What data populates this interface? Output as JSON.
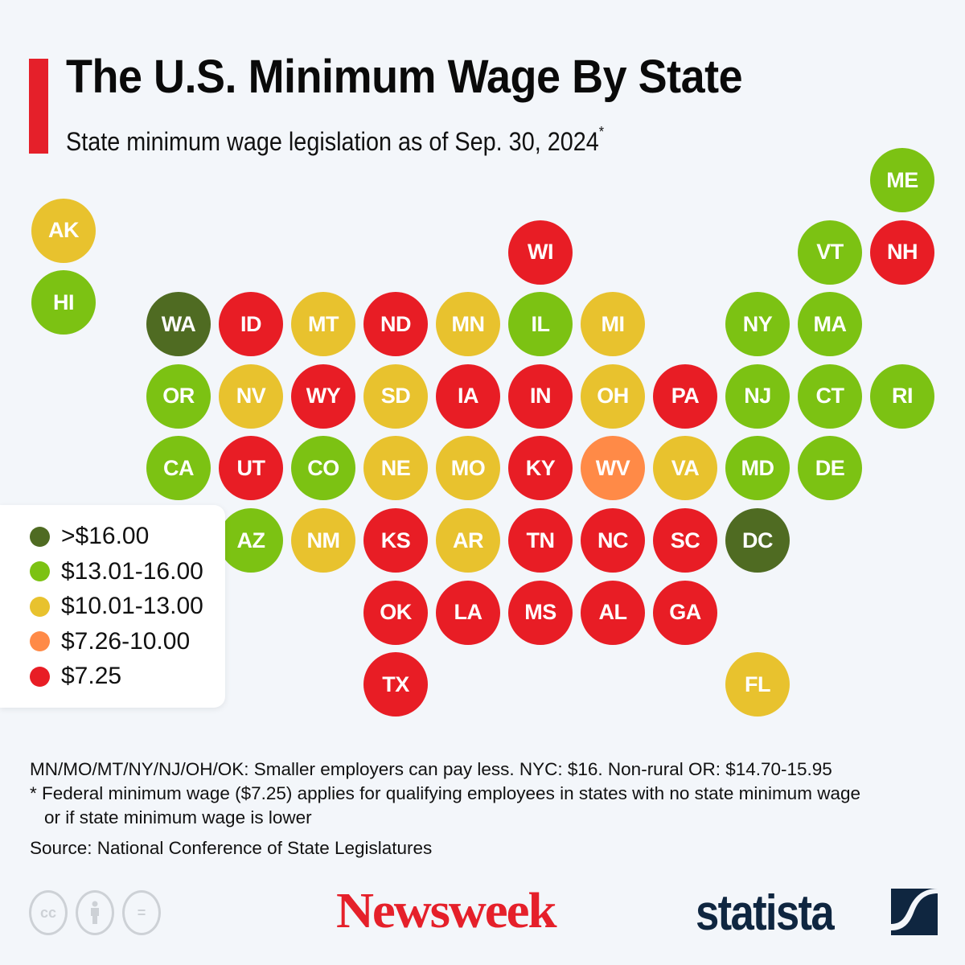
{
  "header": {
    "title": "The U.S. Minimum Wage By State",
    "subtitle": "State minimum wage legislation as of Sep. 30, 2024",
    "subtitle_marker": "*"
  },
  "colors": {
    "over16": "#4f6b22",
    "13to16": "#7cc213",
    "10to13": "#e8c22e",
    "7to10": "#ff8a47",
    "725": "#e81d25",
    "accent": "#e5202a",
    "background": "#f3f6fa"
  },
  "legend": [
    {
      "key": "over16",
      "label": ">$16.00"
    },
    {
      "key": "13to16",
      "label": "$13.01-16.00"
    },
    {
      "key": "10to13",
      "label": "$10.01-13.00"
    },
    {
      "key": "7to10",
      "label": "$7.26-10.00"
    },
    {
      "key": "725",
      "label": "$7.25"
    }
  ],
  "states": [
    {
      "abbr": "ME",
      "tier": "13to16",
      "col": 10,
      "row": 0
    },
    {
      "abbr": "AK",
      "tier": "10to13",
      "col": -1,
      "row": 0.7
    },
    {
      "abbr": "WI",
      "tier": "725",
      "col": 5,
      "row": 1
    },
    {
      "abbr": "VT",
      "tier": "13to16",
      "col": 9,
      "row": 1
    },
    {
      "abbr": "NH",
      "tier": "725",
      "col": 10,
      "row": 1
    },
    {
      "abbr": "HI",
      "tier": "13to16",
      "col": -1,
      "row": 1.7
    },
    {
      "abbr": "WA",
      "tier": "over16",
      "col": 0,
      "row": 2
    },
    {
      "abbr": "ID",
      "tier": "725",
      "col": 1,
      "row": 2
    },
    {
      "abbr": "MT",
      "tier": "10to13",
      "col": 2,
      "row": 2
    },
    {
      "abbr": "ND",
      "tier": "725",
      "col": 3,
      "row": 2
    },
    {
      "abbr": "MN",
      "tier": "10to13",
      "col": 4,
      "row": 2
    },
    {
      "abbr": "IL",
      "tier": "13to16",
      "col": 5,
      "row": 2
    },
    {
      "abbr": "MI",
      "tier": "10to13",
      "col": 6,
      "row": 2
    },
    {
      "abbr": "NY",
      "tier": "13to16",
      "col": 8,
      "row": 2
    },
    {
      "abbr": "MA",
      "tier": "13to16",
      "col": 9,
      "row": 2
    },
    {
      "abbr": "OR",
      "tier": "13to16",
      "col": 0,
      "row": 3
    },
    {
      "abbr": "NV",
      "tier": "10to13",
      "col": 1,
      "row": 3
    },
    {
      "abbr": "WY",
      "tier": "725",
      "col": 2,
      "row": 3
    },
    {
      "abbr": "SD",
      "tier": "10to13",
      "col": 3,
      "row": 3
    },
    {
      "abbr": "IA",
      "tier": "725",
      "col": 4,
      "row": 3
    },
    {
      "abbr": "IN",
      "tier": "725",
      "col": 5,
      "row": 3
    },
    {
      "abbr": "OH",
      "tier": "10to13",
      "col": 6,
      "row": 3
    },
    {
      "abbr": "PA",
      "tier": "725",
      "col": 7,
      "row": 3
    },
    {
      "abbr": "NJ",
      "tier": "13to16",
      "col": 8,
      "row": 3
    },
    {
      "abbr": "CT",
      "tier": "13to16",
      "col": 9,
      "row": 3
    },
    {
      "abbr": "RI",
      "tier": "13to16",
      "col": 10,
      "row": 3
    },
    {
      "abbr": "CA",
      "tier": "13to16",
      "col": 0,
      "row": 4
    },
    {
      "abbr": "UT",
      "tier": "725",
      "col": 1,
      "row": 4
    },
    {
      "abbr": "CO",
      "tier": "13to16",
      "col": 2,
      "row": 4
    },
    {
      "abbr": "NE",
      "tier": "10to13",
      "col": 3,
      "row": 4
    },
    {
      "abbr": "MO",
      "tier": "10to13",
      "col": 4,
      "row": 4
    },
    {
      "abbr": "KY",
      "tier": "725",
      "col": 5,
      "row": 4
    },
    {
      "abbr": "WV",
      "tier": "7to10",
      "col": 6,
      "row": 4
    },
    {
      "abbr": "VA",
      "tier": "10to13",
      "col": 7,
      "row": 4
    },
    {
      "abbr": "MD",
      "tier": "13to16",
      "col": 8,
      "row": 4
    },
    {
      "abbr": "DE",
      "tier": "13to16",
      "col": 9,
      "row": 4
    },
    {
      "abbr": "AZ",
      "tier": "13to16",
      "col": 1,
      "row": 5
    },
    {
      "abbr": "NM",
      "tier": "10to13",
      "col": 2,
      "row": 5
    },
    {
      "abbr": "KS",
      "tier": "725",
      "col": 3,
      "row": 5
    },
    {
      "abbr": "AR",
      "tier": "10to13",
      "col": 4,
      "row": 5
    },
    {
      "abbr": "TN",
      "tier": "725",
      "col": 5,
      "row": 5
    },
    {
      "abbr": "NC",
      "tier": "725",
      "col": 6,
      "row": 5
    },
    {
      "abbr": "SC",
      "tier": "725",
      "col": 7,
      "row": 5
    },
    {
      "abbr": "DC",
      "tier": "over16",
      "col": 8,
      "row": 5
    },
    {
      "abbr": "OK",
      "tier": "725",
      "col": 3,
      "row": 6
    },
    {
      "abbr": "LA",
      "tier": "725",
      "col": 4,
      "row": 6
    },
    {
      "abbr": "MS",
      "tier": "725",
      "col": 5,
      "row": 6
    },
    {
      "abbr": "AL",
      "tier": "725",
      "col": 6,
      "row": 6
    },
    {
      "abbr": "GA",
      "tier": "725",
      "col": 7,
      "row": 6
    },
    {
      "abbr": "TX",
      "tier": "725",
      "col": 3,
      "row": 7
    },
    {
      "abbr": "FL",
      "tier": "10to13",
      "col": 8,
      "row": 7
    }
  ],
  "notes": {
    "line1": "MN/MO/MT/NY/NJ/OH/OK: Smaller employers can pay less. NYC: $16. Non-rural OR: $14.70-15.95",
    "line2": "* Federal minimum wage ($7.25) applies for qualifying employees in states with no state minimum wage",
    "line3": "or if state minimum wage is lower",
    "source": "Source: National Conference of State Legislatures"
  },
  "footer": {
    "cc_icons": [
      "cc-icon",
      "attribution-icon",
      "no-derivatives-icon"
    ],
    "cc_label": "cc",
    "equals_label": "=",
    "newsweek_logo": "Newsweek",
    "statista_logo": "statista"
  }
}
